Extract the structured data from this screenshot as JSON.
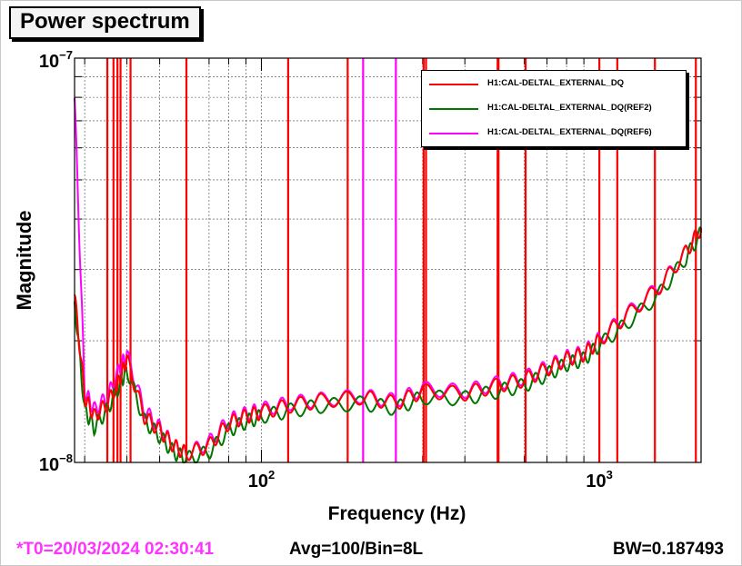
{
  "title": "Power spectrum",
  "footer": {
    "t0": "*T0=20/03/2024 02:30:41",
    "avg": "Avg=100/Bin=8L",
    "bw": "BW=0.187493"
  },
  "chart_data": {
    "type": "line",
    "title": "Power spectrum",
    "xlabel": "Frequency (Hz)",
    "ylabel": "Magnitude",
    "xscale": "log",
    "yscale": "log",
    "xlim": [
      28,
      2000
    ],
    "ylim": [
      1e-08,
      1e-07
    ],
    "x_tick_labels": [
      {
        "value": 100,
        "base": "10",
        "exp": "2"
      },
      {
        "value": 1000,
        "base": "10",
        "exp": "3"
      }
    ],
    "y_tick_labels": [
      {
        "value": 1e-08,
        "base": "10",
        "exp": "−8"
      },
      {
        "value": 1e-07,
        "base": "10",
        "exp": "−7"
      }
    ],
    "grid": true,
    "legend_position": "top-right",
    "colors": {
      "red": "#ff0000",
      "green": "#007700",
      "magenta": "#ff00ff"
    },
    "series": [
      {
        "name": "H1:CAL-DELTAL_EXTERNAL_DQ",
        "color": "#ff0000",
        "x": [
          28,
          30,
          32,
          35,
          38,
          40,
          45,
          50,
          55,
          60,
          70,
          80,
          90,
          100,
          120,
          150,
          200,
          250,
          300,
          400,
          500,
          600,
          700,
          800,
          900,
          1000,
          1200,
          1500,
          1800,
          2000
        ],
        "y": [
          2.6e-08,
          1.45e-08,
          1.3e-08,
          1.4e-08,
          1.6e-08,
          1.8e-08,
          1.3e-08,
          1.2e-08,
          1.1e-08,
          1.05e-08,
          1.1e-08,
          1.25e-08,
          1.3e-08,
          1.33e-08,
          1.38e-08,
          1.42e-08,
          1.45e-08,
          1.4e-08,
          1.5e-08,
          1.48e-08,
          1.55e-08,
          1.6e-08,
          1.7e-08,
          1.8e-08,
          1.85e-08,
          2e-08,
          2.3e-08,
          2.7e-08,
          3.3e-08,
          3.8e-08
        ]
      },
      {
        "name": "H1:CAL-DELTAL_EXTERNAL_DQ(REF2)",
        "color": "#007700",
        "x": [
          28,
          30,
          32,
          35,
          38,
          40,
          45,
          50,
          55,
          60,
          70,
          80,
          90,
          100,
          120,
          150,
          200,
          250,
          300,
          400,
          500,
          600,
          700,
          800,
          900,
          1000,
          1200,
          1500,
          1800,
          2000
        ],
        "y": [
          2.5e-08,
          1.35e-08,
          1.22e-08,
          1.35e-08,
          1.55e-08,
          1.7e-08,
          1.27e-08,
          1.16e-08,
          1.06e-08,
          1.02e-08,
          1.06e-08,
          1.2e-08,
          1.26e-08,
          1.3e-08,
          1.34e-08,
          1.38e-08,
          1.4e-08,
          1.36e-08,
          1.45e-08,
          1.44e-08,
          1.5e-08,
          1.55e-08,
          1.65e-08,
          1.75e-08,
          1.8e-08,
          1.95e-08,
          2.2e-08,
          2.6e-08,
          3.2e-08,
          3.7e-08
        ]
      },
      {
        "name": "H1:CAL-DELTAL_EXTERNAL_DQ(REF6)",
        "color": "#ff00ff",
        "x": [
          28,
          30,
          32,
          35,
          38,
          40,
          45,
          50,
          55,
          60,
          70,
          80,
          90,
          100,
          120,
          150,
          200,
          250,
          300,
          400,
          500,
          600,
          700,
          800,
          900,
          1000,
          1200,
          1500,
          1800,
          2000
        ],
        "y": [
          8e-08,
          1.5e-08,
          1.35e-08,
          1.45e-08,
          1.7e-08,
          1.85e-08,
          1.35e-08,
          1.22e-08,
          1.1e-08,
          1.05e-08,
          1.12e-08,
          1.27e-08,
          1.32e-08,
          1.35e-08,
          1.4e-08,
          1.43e-08,
          1.46e-08,
          1.42e-08,
          1.52e-08,
          1.5e-08,
          1.57e-08,
          1.62e-08,
          1.72e-08,
          1.82e-08,
          1.87e-08,
          2.02e-08,
          2.32e-08,
          2.72e-08,
          3.3e-08,
          3.8e-08
        ]
      }
    ],
    "spike_lines": [
      {
        "x": 35,
        "color": "#ff0000"
      },
      {
        "x": 36.5,
        "color": "#ff0000"
      },
      {
        "x": 37.5,
        "color": "#ff0000"
      },
      {
        "x": 38.3,
        "color": "#ff0000"
      },
      {
        "x": 41,
        "color": "#ff0000"
      },
      {
        "x": 60,
        "color": "#ff0000"
      },
      {
        "x": 120,
        "color": "#ff0000"
      },
      {
        "x": 180,
        "color": "#ff0000"
      },
      {
        "x": 200,
        "color": "#ff00ff"
      },
      {
        "x": 250,
        "color": "#ff00ff"
      },
      {
        "x": 302,
        "color": "#ff0000"
      },
      {
        "x": 307,
        "color": "#ff0000"
      },
      {
        "x": 500,
        "color": "#ff0000"
      },
      {
        "x": 503,
        "color": "#ff0000"
      },
      {
        "x": 605,
        "color": "#ff0000"
      },
      {
        "x": 1000,
        "color": "#ff0000"
      },
      {
        "x": 1130,
        "color": "#ff0000"
      },
      {
        "x": 1460,
        "color": "#ff0000"
      },
      {
        "x": 1930,
        "color": "#ff0000"
      }
    ]
  }
}
